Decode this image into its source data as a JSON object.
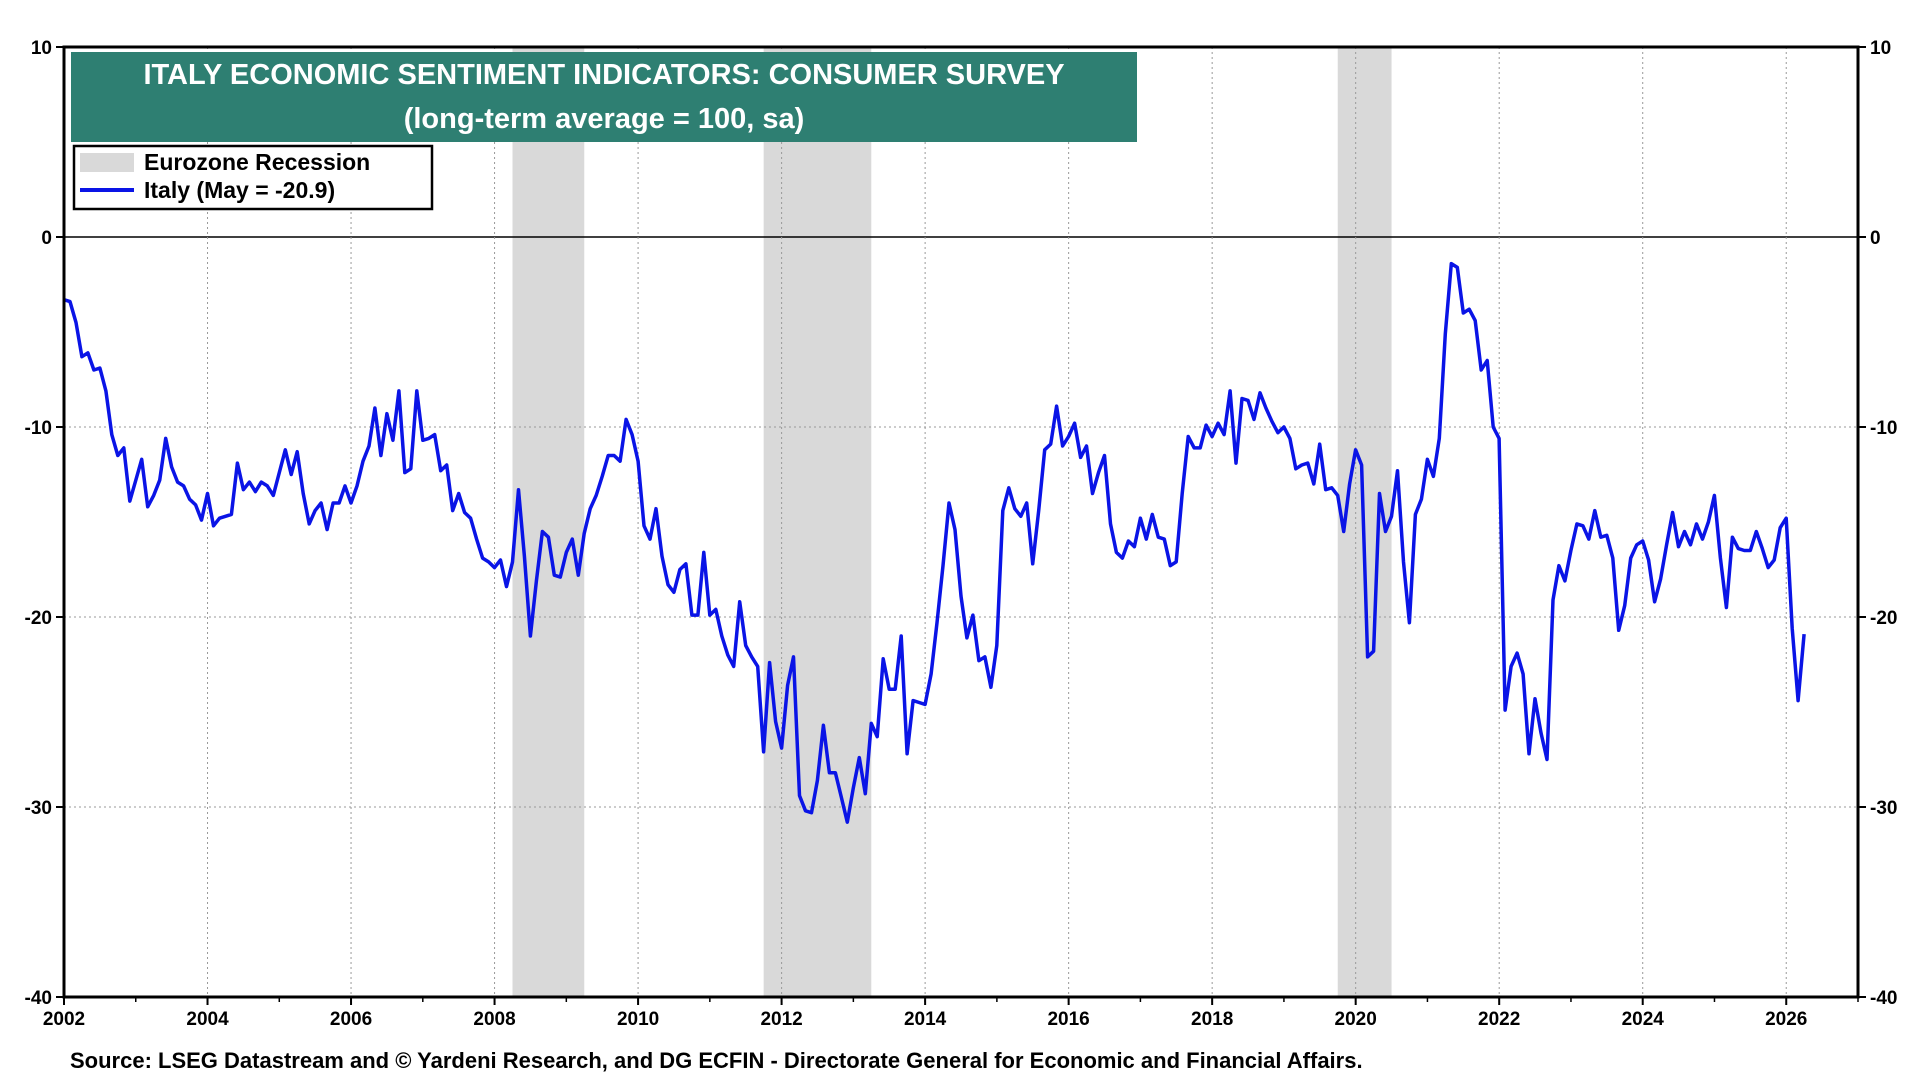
{
  "chart_data": {
    "type": "line",
    "title": "ITALY ECONOMIC SENTIMENT INDICATORS: CONSUMER SURVEY",
    "subtitle": "(long-term average = 100, sa)",
    "source": "Source: LSEG Datastream and © Yardeni Research, and DG ECFIN - Directorate General for Economic and Financial Affairs.",
    "xlim": [
      2002,
      2027
    ],
    "ylim": [
      -40,
      10
    ],
    "x_ticks": [
      "2002",
      "2004",
      "2006",
      "2008",
      "2010",
      "2012",
      "2014",
      "2016",
      "2018",
      "2020",
      "2022",
      "2024",
      "2026"
    ],
    "y_ticks": [
      "10",
      "0",
      "-10",
      "-20",
      "-30",
      "-40"
    ],
    "grid": true,
    "legend_position": "top-left",
    "legend": [
      {
        "label": "Eurozone Recession",
        "kind": "band"
      },
      {
        "label": "Italy (May = -20.9)",
        "kind": "line"
      }
    ],
    "recessions": [
      [
        2008.25,
        2009.25
      ],
      [
        2011.75,
        2013.25
      ],
      [
        2019.75,
        2020.5
      ]
    ],
    "series": [
      {
        "name": "Italy (May = -20.9)",
        "color": "#0a14e6",
        "x_start": 2002.0,
        "step": 0.08333,
        "values": [
          -3.3,
          -3.4,
          -4.5,
          -6.3,
          -6.1,
          -7.0,
          -6.9,
          -8.1,
          -10.4,
          -11.5,
          -11.1,
          -13.9,
          -12.8,
          -11.7,
          -14.2,
          -13.6,
          -12.8,
          -10.6,
          -12.1,
          -12.9,
          -13.1,
          -13.8,
          -14.1,
          -14.9,
          -13.5,
          -15.2,
          -14.8,
          -14.7,
          -14.6,
          -11.9,
          -13.3,
          -12.9,
          -13.4,
          -12.9,
          -13.1,
          -13.6,
          -12.4,
          -11.2,
          -12.5,
          -11.3,
          -13.5,
          -15.1,
          -14.4,
          -14.0,
          -15.4,
          -14.0,
          -14.0,
          -13.1,
          -14.0,
          -13.1,
          -11.8,
          -11.0,
          -9.0,
          -11.5,
          -9.3,
          -10.7,
          -8.1,
          -12.4,
          -12.2,
          -8.1,
          -10.7,
          -10.6,
          -10.4,
          -12.3,
          -12.0,
          -14.4,
          -13.5,
          -14.5,
          -14.8,
          -15.9,
          -16.9,
          -17.1,
          -17.4,
          -17.0,
          -18.4,
          -17.1,
          -13.3,
          -16.8,
          -21.0,
          -18.1,
          -15.5,
          -15.8,
          -17.8,
          -17.9,
          -16.6,
          -15.9,
          -17.8,
          -15.6,
          -14.3,
          -13.6,
          -12.6,
          -11.5,
          -11.5,
          -11.8,
          -9.6,
          -10.4,
          -11.8,
          -15.2,
          -15.9,
          -14.3,
          -16.8,
          -18.3,
          -18.7,
          -17.5,
          -17.2,
          -19.9,
          -19.9,
          -16.6,
          -19.9,
          -19.6,
          -21.0,
          -22.0,
          -22.6,
          -19.2,
          -21.5,
          -22.1,
          -22.6,
          -27.1,
          -22.4,
          -25.5,
          -26.9,
          -23.6,
          -22.1,
          -29.4,
          -30.2,
          -30.3,
          -28.6,
          -25.7,
          -28.2,
          -28.2,
          -29.5,
          -30.8,
          -29.0,
          -27.4,
          -29.3,
          -25.6,
          -26.3,
          -22.2,
          -23.8,
          -23.8,
          -21.0,
          -27.2,
          -24.4,
          -24.5,
          -24.6,
          -23.0,
          -20.3,
          -17.3,
          -14.0,
          -15.4,
          -18.9,
          -21.1,
          -19.9,
          -22.3,
          -22.1,
          -23.7,
          -21.5,
          -14.4,
          -13.2,
          -14.3,
          -14.7,
          -14.0,
          -17.2,
          -14.4,
          -11.2,
          -10.9,
          -8.9,
          -11.0,
          -10.5,
          -9.8,
          -11.6,
          -11.0,
          -13.5,
          -12.4,
          -11.5,
          -15.1,
          -16.6,
          -16.9,
          -16.0,
          -16.3,
          -14.8,
          -15.9,
          -14.6,
          -15.8,
          -15.9,
          -17.3,
          -17.1,
          -13.5,
          -10.5,
          -11.1,
          -11.1,
          -9.9,
          -10.5,
          -9.8,
          -10.4,
          -8.1,
          -11.9,
          -8.5,
          -8.6,
          -9.6,
          -8.2,
          -9.0,
          -9.7,
          -10.3,
          -10.0,
          -10.6,
          -12.2,
          -12.0,
          -11.9,
          -13.0,
          -10.9,
          -13.3,
          -13.2,
          -13.6,
          -15.5,
          -13.0,
          -11.2,
          -12.0,
          -22.1,
          -21.8,
          -13.5,
          -15.5,
          -14.7,
          -12.3,
          -17.1,
          -20.3,
          -14.6,
          -13.8,
          -11.7,
          -12.6,
          -10.6,
          -5.1,
          -1.4,
          -1.6,
          -4.0,
          -3.8,
          -4.4,
          -7.0,
          -6.5,
          -10.0,
          -10.6,
          -24.9,
          -22.6,
          -21.9,
          -23.0,
          -27.2,
          -24.3,
          -26.1,
          -27.5,
          -19.1,
          -17.3,
          -18.1,
          -16.5,
          -15.1,
          -15.2,
          -15.9,
          -14.4,
          -15.8,
          -15.7,
          -16.9,
          -20.7,
          -19.4,
          -16.9,
          -16.2,
          -16.0,
          -17.0,
          -19.2,
          -18.0,
          -16.2,
          -14.5,
          -16.3,
          -15.5,
          -16.2,
          -15.1,
          -15.9,
          -15.0,
          -13.6,
          -16.9,
          -19.5,
          -15.8,
          -16.4,
          -16.5,
          -16.5,
          -15.5,
          -16.4,
          -17.4,
          -17.0,
          -15.3,
          -14.8,
          -20.6,
          -24.4,
          -20.9
        ]
      }
    ]
  }
}
